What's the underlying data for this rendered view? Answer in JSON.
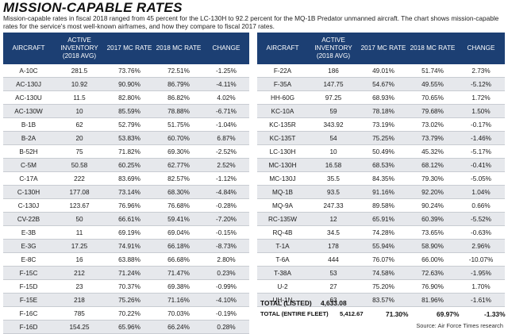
{
  "title": "MISSION-CAPABLE RATES",
  "intro": "Mission-capable rates in fiscal 2018 ranged from 45 percent for the LC-130H  to 92.2 percent for the MQ-1B Predator unmanned aircraft. The chart shows mission-capable rates for the service's most well-known airframes, and how they compare to fiscal 2017 rates.",
  "headers": [
    "AIRCRAFT",
    "ACTIVE INVENTORY (2018 AVG)",
    "2017 MC RATE",
    "2018 MC RATE",
    "CHANGE"
  ],
  "left_rows": [
    [
      "A-10C",
      "281.5",
      "73.76%",
      "72.51%",
      "-1.25%"
    ],
    [
      "AC-130J",
      "10.92",
      "90.90%",
      "86.79%",
      "-4.11%"
    ],
    [
      "AC-130U",
      "11.5",
      "82.80%",
      "86.82%",
      "4.02%"
    ],
    [
      "AC-130W",
      "10",
      "85.59%",
      "78.88%",
      "-6.71%"
    ],
    [
      "B-1B",
      "62",
      "52.79%",
      "51.75%",
      "-1.04%"
    ],
    [
      "B-2A",
      "20",
      "53.83%",
      "60.70%",
      "6.87%"
    ],
    [
      "B-52H",
      "75",
      "71.82%",
      "69.30%",
      "-2.52%"
    ],
    [
      "C-5M",
      "50.58",
      "60.25%",
      "62.77%",
      "2.52%"
    ],
    [
      "C-17A",
      "222",
      "83.69%",
      "82.57%",
      "-1.12%"
    ],
    [
      "C-130H",
      "177.08",
      "73.14%",
      "68.30%",
      "-4.84%"
    ],
    [
      "C-130J",
      "123.67",
      "76.96%",
      "76.68%",
      "-0.28%"
    ],
    [
      "CV-22B",
      "50",
      "66.61%",
      "59.41%",
      "-7.20%"
    ],
    [
      "E-3B",
      "11",
      "69.19%",
      "69.04%",
      "-0.15%"
    ],
    [
      "E-3G",
      "17.25",
      "74.91%",
      "66.18%",
      "-8.73%"
    ],
    [
      "E-8C",
      "16",
      "63.88%",
      "66.68%",
      "2.80%"
    ],
    [
      "F-15C",
      "212",
      "71.24%",
      "71.47%",
      "0.23%"
    ],
    [
      "F-15D",
      "23",
      "70.37%",
      "69.38%",
      "-0.99%"
    ],
    [
      "F-15E",
      "218",
      "75.26%",
      "71.16%",
      "-4.10%"
    ],
    [
      "F-16C",
      "785",
      "70.22%",
      "70.03%",
      "-0.19%"
    ],
    [
      "F-16D",
      "154.25",
      "65.96%",
      "66.24%",
      "0.28%"
    ]
  ],
  "right_rows": [
    [
      "F-22A",
      "186",
      "49.01%",
      "51.74%",
      "2.73%"
    ],
    [
      "F-35A",
      "147.75",
      "54.67%",
      "49.55%",
      "-5.12%"
    ],
    [
      "HH-60G",
      "97.25",
      "68.93%",
      "70.65%",
      "1.72%"
    ],
    [
      "KC-10A",
      "59",
      "78.18%",
      "79.68%",
      "1.50%"
    ],
    [
      "KC-135R",
      "343.92",
      "73.19%",
      "73.02%",
      "-0.17%"
    ],
    [
      "KC-135T",
      "54",
      "75.25%",
      "73.79%",
      "-1.46%"
    ],
    [
      "LC-130H",
      "10",
      "50.49%",
      "45.32%",
      "-5.17%"
    ],
    [
      "MC-130H",
      "16.58",
      "68.53%",
      "68.12%",
      "-0.41%"
    ],
    [
      "MC-130J",
      "35.5",
      "84.35%",
      "79.30%",
      "-5.05%"
    ],
    [
      "MQ-1B",
      "93.5",
      "91.16%",
      "92.20%",
      "1.04%"
    ],
    [
      "MQ-9A",
      "247.33",
      "89.58%",
      "90.24%",
      "0.66%"
    ],
    [
      "RC-135W",
      "12",
      "65.91%",
      "60.39%",
      "-5.52%"
    ],
    [
      "RQ-4B",
      "34.5",
      "74.28%",
      "73.65%",
      "-0.63%"
    ],
    [
      "T-1A",
      "178",
      "55.94%",
      "58.90%",
      "2.96%"
    ],
    [
      "T-6A",
      "444",
      "76.07%",
      "66.00%",
      "-10.07%"
    ],
    [
      "T-38A",
      "53",
      "74.58%",
      "72.63%",
      "-1.95%"
    ],
    [
      "U-2",
      "27",
      "75.20%",
      "76.90%",
      "1.70%"
    ],
    [
      "UH-1N",
      "63",
      "83.57%",
      "81.96%",
      "-1.61%"
    ]
  ],
  "totals": {
    "listed_label": "TOTAL (LISTED)",
    "listed_value": "4,633.08",
    "fleet_label": "TOTAL (ENTIRE FLEET)",
    "fleet_value": "5,412.67",
    "fleet_2017": "71.30%",
    "fleet_2018": "69.97%",
    "fleet_change": "-1.33%"
  },
  "source": "Source: Air Force Times research"
}
